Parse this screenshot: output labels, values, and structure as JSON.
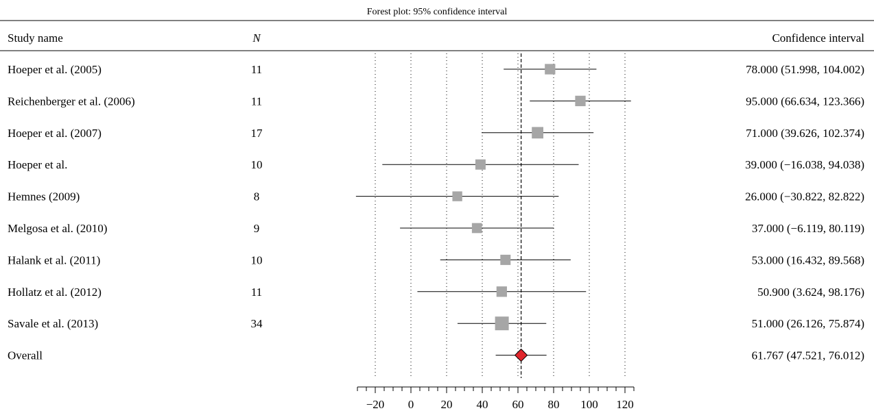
{
  "chart_data": {
    "type": "forest",
    "title": "Forest plot: 95% confidence interval",
    "headers": {
      "study": "Study name",
      "n": "N",
      "ci": "Confidence interval"
    },
    "xlim": [
      -30,
      125
    ],
    "ticks": [
      -20,
      0,
      20,
      40,
      60,
      80,
      100,
      120
    ],
    "tick_labels": [
      "−20",
      "0",
      "20",
      "40",
      "60",
      "80",
      "100",
      "120"
    ],
    "reference_line": 61.767,
    "grid": "vertical dotted",
    "colors": {
      "marker": "#a6a6a6",
      "overall": "#e0262c",
      "line": "#000000"
    },
    "studies": [
      {
        "name": "Hoeper et al. (2005)",
        "n": "11",
        "estimate": 78.0,
        "lower": 51.998,
        "upper": 104.002,
        "ci_text": "78.000 (51.998, 104.002)"
      },
      {
        "name": "Reichenberger et al. (2006)",
        "n": "11",
        "estimate": 95.0,
        "lower": 66.634,
        "upper": 123.366,
        "ci_text": "95.000 (66.634, 123.366)"
      },
      {
        "name": "Hoeper et al. (2007)",
        "n": "17",
        "estimate": 71.0,
        "lower": 39.626,
        "upper": 102.374,
        "ci_text": "71.000 (39.626, 102.374)"
      },
      {
        "name": "Hoeper et al.",
        "n": "10",
        "estimate": 39.0,
        "lower": -16.038,
        "upper": 94.038,
        "ci_text": "39.000 (−16.038, 94.038)"
      },
      {
        "name": "Hemnes (2009)",
        "n": "8",
        "estimate": 26.0,
        "lower": -30.822,
        "upper": 82.822,
        "ci_text": "26.000 (−30.822, 82.822)"
      },
      {
        "name": "Melgosa et al. (2010)",
        "n": "9",
        "estimate": 37.0,
        "lower": -6.119,
        "upper": 80.119,
        "ci_text": "37.000 (−6.119, 80.119)"
      },
      {
        "name": "Halank et al. (2011)",
        "n": "10",
        "estimate": 53.0,
        "lower": 16.432,
        "upper": 89.568,
        "ci_text": "53.000 (16.432, 89.568)"
      },
      {
        "name": "Hollatz et al. (2012)",
        "n": "11",
        "estimate": 50.9,
        "lower": 3.624,
        "upper": 98.176,
        "ci_text": "50.900 (3.624, 98.176)"
      },
      {
        "name": "Savale et al. (2013)",
        "n": "34",
        "estimate": 51.0,
        "lower": 26.126,
        "upper": 75.874,
        "ci_text": "51.000 (26.126, 75.874)"
      }
    ],
    "overall": {
      "name": "Overall",
      "n": "",
      "estimate": 61.767,
      "lower": 47.521,
      "upper": 76.012,
      "ci_text": "61.767 (47.521, 76.012)"
    }
  }
}
